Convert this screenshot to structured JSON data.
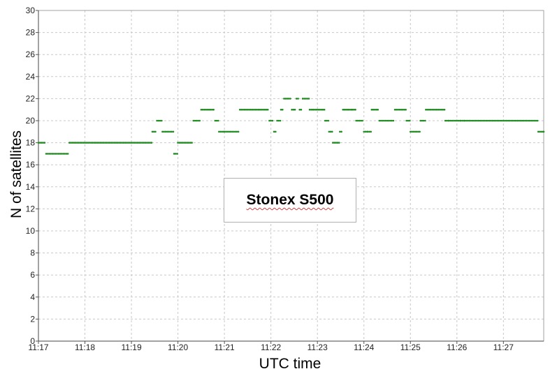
{
  "chart_data": {
    "type": "scatter",
    "title": "",
    "xlabel": "UTC time",
    "ylabel": "N of satellites",
    "annotation": "Stonex S500",
    "xlim": [
      "11:17",
      "11:27:52"
    ],
    "ylim": [
      0,
      30
    ],
    "grid": true,
    "x_ticks": [
      "11:17",
      "11:18",
      "11:19",
      "11:20",
      "11:21",
      "11:22",
      "11:23",
      "11:24",
      "11:25",
      "11:26",
      "11:27"
    ],
    "y_ticks": [
      0,
      2,
      4,
      6,
      8,
      10,
      12,
      14,
      16,
      18,
      20,
      22,
      24,
      26,
      28,
      30
    ],
    "series": [
      {
        "color": "#1f8a1f",
        "x": [
          "11:17:00",
          "11:17:10",
          "11:17:20",
          "11:17:40",
          "11:18:00",
          "11:18:30",
          "11:19:00",
          "11:19:20",
          "11:19:27",
          "11:19:33",
          "11:19:40",
          "11:19:50",
          "11:19:55",
          "11:20:00",
          "11:20:10",
          "11:20:20",
          "11:20:30",
          "11:20:40",
          "11:20:48",
          "11:20:53",
          "11:21:00",
          "11:21:20",
          "11:21:40",
          "11:21:50",
          "11:21:58",
          "11:22:04",
          "11:22:08",
          "11:22:13",
          "11:22:17",
          "11:22:21",
          "11:22:27",
          "11:22:33",
          "11:22:37",
          "11:22:41",
          "11:22:50",
          "11:22:55",
          "11:23:05",
          "11:23:10",
          "11:23:15",
          "11:23:20",
          "11:23:29",
          "11:23:33",
          "11:23:40",
          "11:23:45",
          "11:23:50",
          "11:24:00",
          "11:24:05",
          "11:24:10",
          "11:24:20",
          "11:24:30",
          "11:24:40",
          "11:24:50",
          "11:24:55",
          "11:25:00",
          "11:25:08",
          "11:25:13",
          "11:25:20",
          "11:25:30",
          "11:25:40",
          "11:25:45",
          "11:25:50",
          "11:26:00",
          "11:26:05",
          "11:26:10",
          "11:26:20",
          "11:26:40",
          "11:27:00",
          "11:27:20",
          "11:27:30",
          "11:27:38",
          "11:27:45",
          "11:27:52"
        ],
        "y": [
          18,
          17,
          17,
          18,
          18,
          18,
          18,
          18,
          19,
          20,
          19,
          19,
          17,
          18,
          18,
          20,
          21,
          21,
          20,
          19,
          19,
          21,
          21,
          21,
          20,
          19,
          20,
          21,
          22,
          22,
          21,
          22,
          21,
          22,
          21,
          21,
          21,
          20,
          19,
          18,
          19,
          21,
          21,
          21,
          20,
          19,
          19,
          21,
          20,
          20,
          21,
          21,
          20,
          19,
          19,
          20,
          21,
          21,
          21,
          20,
          20,
          20,
          20,
          20,
          20,
          20,
          20,
          20,
          20,
          20,
          19,
          19
        ]
      }
    ]
  }
}
